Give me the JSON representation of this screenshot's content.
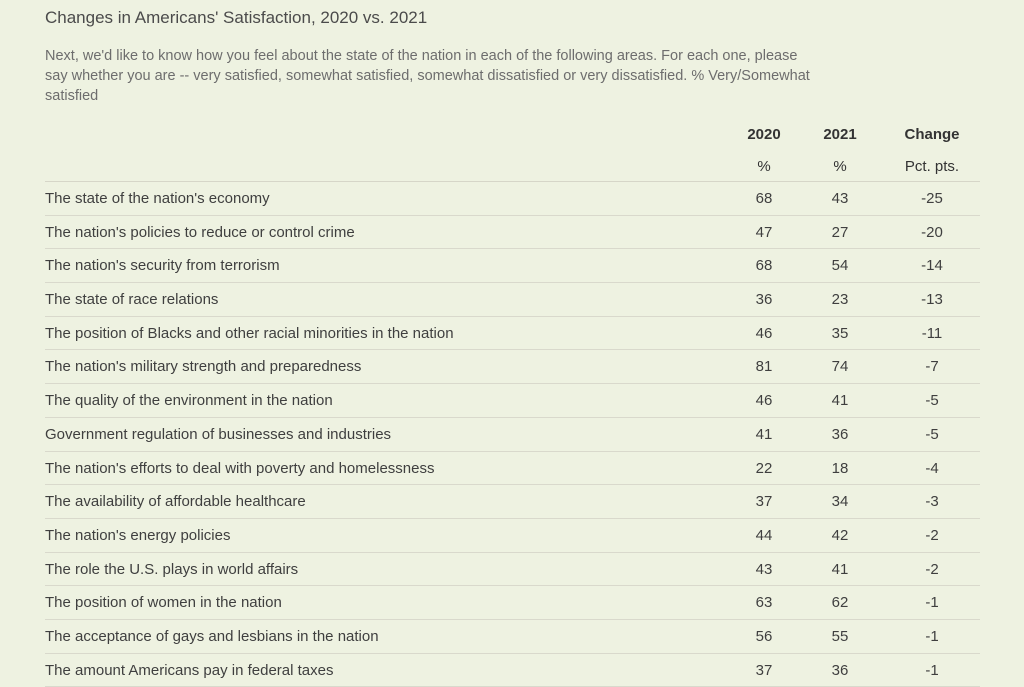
{
  "header": {
    "title": "Changes in Americans' Satisfaction, 2020 vs. 2021",
    "subtitle": "Next, we'd like to know how you feel about the state of the nation in each of the following areas. For each one, please say whether you are -- very satisfied, somewhat satisfied, somewhat dissatisfied or very dissatisfied. % Very/Somewhat satisfied"
  },
  "columns": {
    "y2020": "2020",
    "y2021": "2021",
    "change": "Change",
    "y2020_unit": "%",
    "y2021_unit": "%",
    "change_unit": "Pct. pts."
  },
  "chart_data": {
    "type": "table",
    "title": "Changes in Americans' Satisfaction, 2020 vs. 2021",
    "columns": [
      "2020",
      "2021",
      "Change"
    ],
    "units": [
      "%",
      "%",
      "Pct. pts."
    ],
    "rows": [
      {
        "label": "The state of the nation's economy",
        "y2020": "68",
        "y2021": "43",
        "change": "-25"
      },
      {
        "label": "The nation's policies to reduce or control crime",
        "y2020": "47",
        "y2021": "27",
        "change": "-20"
      },
      {
        "label": "The nation's security from terrorism",
        "y2020": "68",
        "y2021": "54",
        "change": "-14"
      },
      {
        "label": "The state of race relations",
        "y2020": "36",
        "y2021": "23",
        "change": "-13"
      },
      {
        "label": "The position of Blacks and other racial minorities in the nation",
        "y2020": "46",
        "y2021": "35",
        "change": "-11"
      },
      {
        "label": "The nation's military strength and preparedness",
        "y2020": "81",
        "y2021": "74",
        "change": "-7"
      },
      {
        "label": "The quality of the environment in the nation",
        "y2020": "46",
        "y2021": "41",
        "change": "-5"
      },
      {
        "label": "Government regulation of businesses and industries",
        "y2020": "41",
        "y2021": "36",
        "change": "-5"
      },
      {
        "label": "The nation's efforts to deal with poverty and homelessness",
        "y2020": "22",
        "y2021": "18",
        "change": "-4"
      },
      {
        "label": "The availability of affordable healthcare",
        "y2020": "37",
        "y2021": "34",
        "change": "-3"
      },
      {
        "label": "The nation's energy policies",
        "y2020": "44",
        "y2021": "42",
        "change": "-2"
      },
      {
        "label": "The role the U.S. plays in world affairs",
        "y2020": "43",
        "y2021": "41",
        "change": "-2"
      },
      {
        "label": "The position of women in the nation",
        "y2020": "63",
        "y2021": "62",
        "change": "-1"
      },
      {
        "label": "The acceptance of gays and lesbians in the nation",
        "y2020": "56",
        "y2021": "55",
        "change": "-1"
      },
      {
        "label": "The amount Americans pay in federal taxes",
        "y2020": "37",
        "y2021": "36",
        "change": "-1"
      }
    ]
  }
}
